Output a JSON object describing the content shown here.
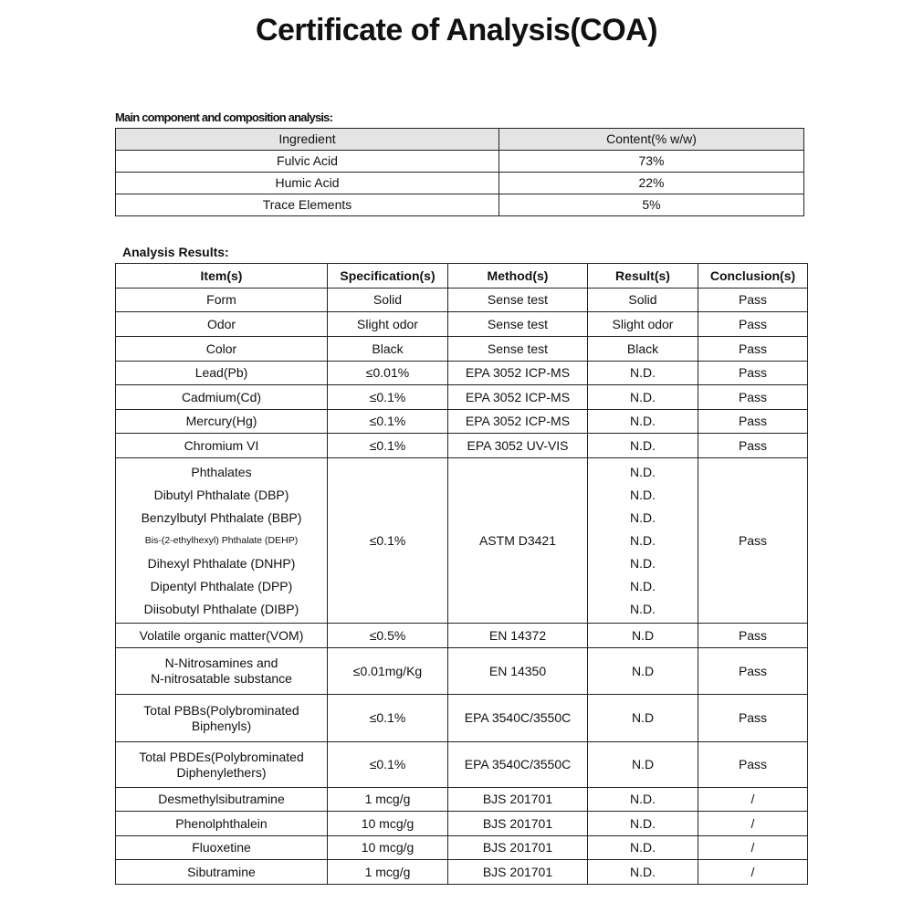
{
  "title": "Certificate of Analysis(COA)",
  "composition": {
    "label": "Main component and composition analysis:",
    "headers": [
      "Ingredient",
      "Content(% w/w)"
    ],
    "rows": [
      [
        "Fulvic Acid",
        "73%"
      ],
      [
        "Humic Acid",
        "22%"
      ],
      [
        "Trace Elements",
        "5%"
      ]
    ],
    "header_bg": "#e4e4e4"
  },
  "analysis": {
    "label": "Analysis Results:",
    "headers": [
      "Item(s)",
      "Specification(s)",
      "Method(s)",
      "Result(s)",
      "Conclusion(s)"
    ],
    "rows": [
      {
        "item": [
          "Form"
        ],
        "spec": "Solid",
        "method": "Sense test",
        "result": [
          "Solid"
        ],
        "conclusion": "Pass"
      },
      {
        "item": [
          "Odor"
        ],
        "spec": "Slight odor",
        "method": "Sense test",
        "result": [
          "Slight odor"
        ],
        "conclusion": "Pass"
      },
      {
        "item": [
          "Color"
        ],
        "spec": "Black",
        "method": "Sense test",
        "result": [
          "Black"
        ],
        "conclusion": "Pass"
      },
      {
        "item": [
          "Lead(Pb)"
        ],
        "spec": "≤0.01%",
        "method": "EPA 3052 ICP-MS",
        "result": [
          "N.D."
        ],
        "conclusion": "Pass"
      },
      {
        "item": [
          "Cadmium(Cd)"
        ],
        "spec": "≤0.1%",
        "method": "EPA 3052 ICP-MS",
        "result": [
          "N.D."
        ],
        "conclusion": "Pass"
      },
      {
        "item": [
          "Mercury(Hg)"
        ],
        "spec": "≤0.1%",
        "method": "EPA 3052 ICP-MS",
        "result": [
          "N.D."
        ],
        "conclusion": "Pass"
      },
      {
        "item": [
          "Chromium VI"
        ],
        "spec": "≤0.1%",
        "method": "EPA 3052 UV-VIS",
        "result": [
          "N.D."
        ],
        "conclusion": "Pass"
      },
      {
        "item": [
          "Phthalates",
          "Dibutyl Phthalate (DBP)",
          "Benzylbutyl Phthalate (BBP)",
          "Bis-(2-ethylhexyl) Phthalate (DEHP)",
          "Dihexyl Phthalate (DNHP)",
          "Dipentyl Phthalate (DPP)",
          "Diisobutyl Phthalate (DIBP)"
        ],
        "spec": "≤0.1%",
        "method": "ASTM D3421",
        "result": [
          "N.D.",
          "N.D.",
          "N.D.",
          "N.D.",
          "N.D.",
          "N.D.",
          "N.D."
        ],
        "conclusion": "Pass"
      },
      {
        "item": [
          "Volatile organic matter(VOM)"
        ],
        "spec": "≤0.5%",
        "method": "EN 14372",
        "result": [
          "N.D"
        ],
        "conclusion": "Pass"
      },
      {
        "item": [
          "N-Nitrosamines and",
          "N-nitrosatable substance"
        ],
        "spec": "≤0.01mg/Kg",
        "method": "EN 14350",
        "result": [
          "N.D"
        ],
        "conclusion": "Pass"
      },
      {
        "item": [
          "Total PBBs(Polybrominated",
          "Biphenyls)"
        ],
        "spec": "≤0.1%",
        "method": "EPA 3540C/3550C",
        "result": [
          "N.D"
        ],
        "conclusion": "Pass"
      },
      {
        "item": [
          "Total PBDEs(Polybrominated",
          "Diphenylethers)"
        ],
        "spec": "≤0.1%",
        "method": "EPA 3540C/3550C",
        "result": [
          "N.D"
        ],
        "conclusion": "Pass"
      },
      {
        "item": [
          "Desmethylsibutramine"
        ],
        "spec": "1 mcg/g",
        "method": "BJS 201701",
        "result": [
          "N.D."
        ],
        "conclusion": "/"
      },
      {
        "item": [
          "Phenolphthalein"
        ],
        "spec": "10 mcg/g",
        "method": "BJS 201701",
        "result": [
          "N.D."
        ],
        "conclusion": "/"
      },
      {
        "item": [
          "Fluoxetine"
        ],
        "spec": "10 mcg/g",
        "method": "BJS 201701",
        "result": [
          "N.D."
        ],
        "conclusion": "/"
      },
      {
        "item": [
          "Sibutramine"
        ],
        "spec": "1 mcg/g",
        "method": "BJS 201701",
        "result": [
          "N.D."
        ],
        "conclusion": "/"
      }
    ]
  }
}
